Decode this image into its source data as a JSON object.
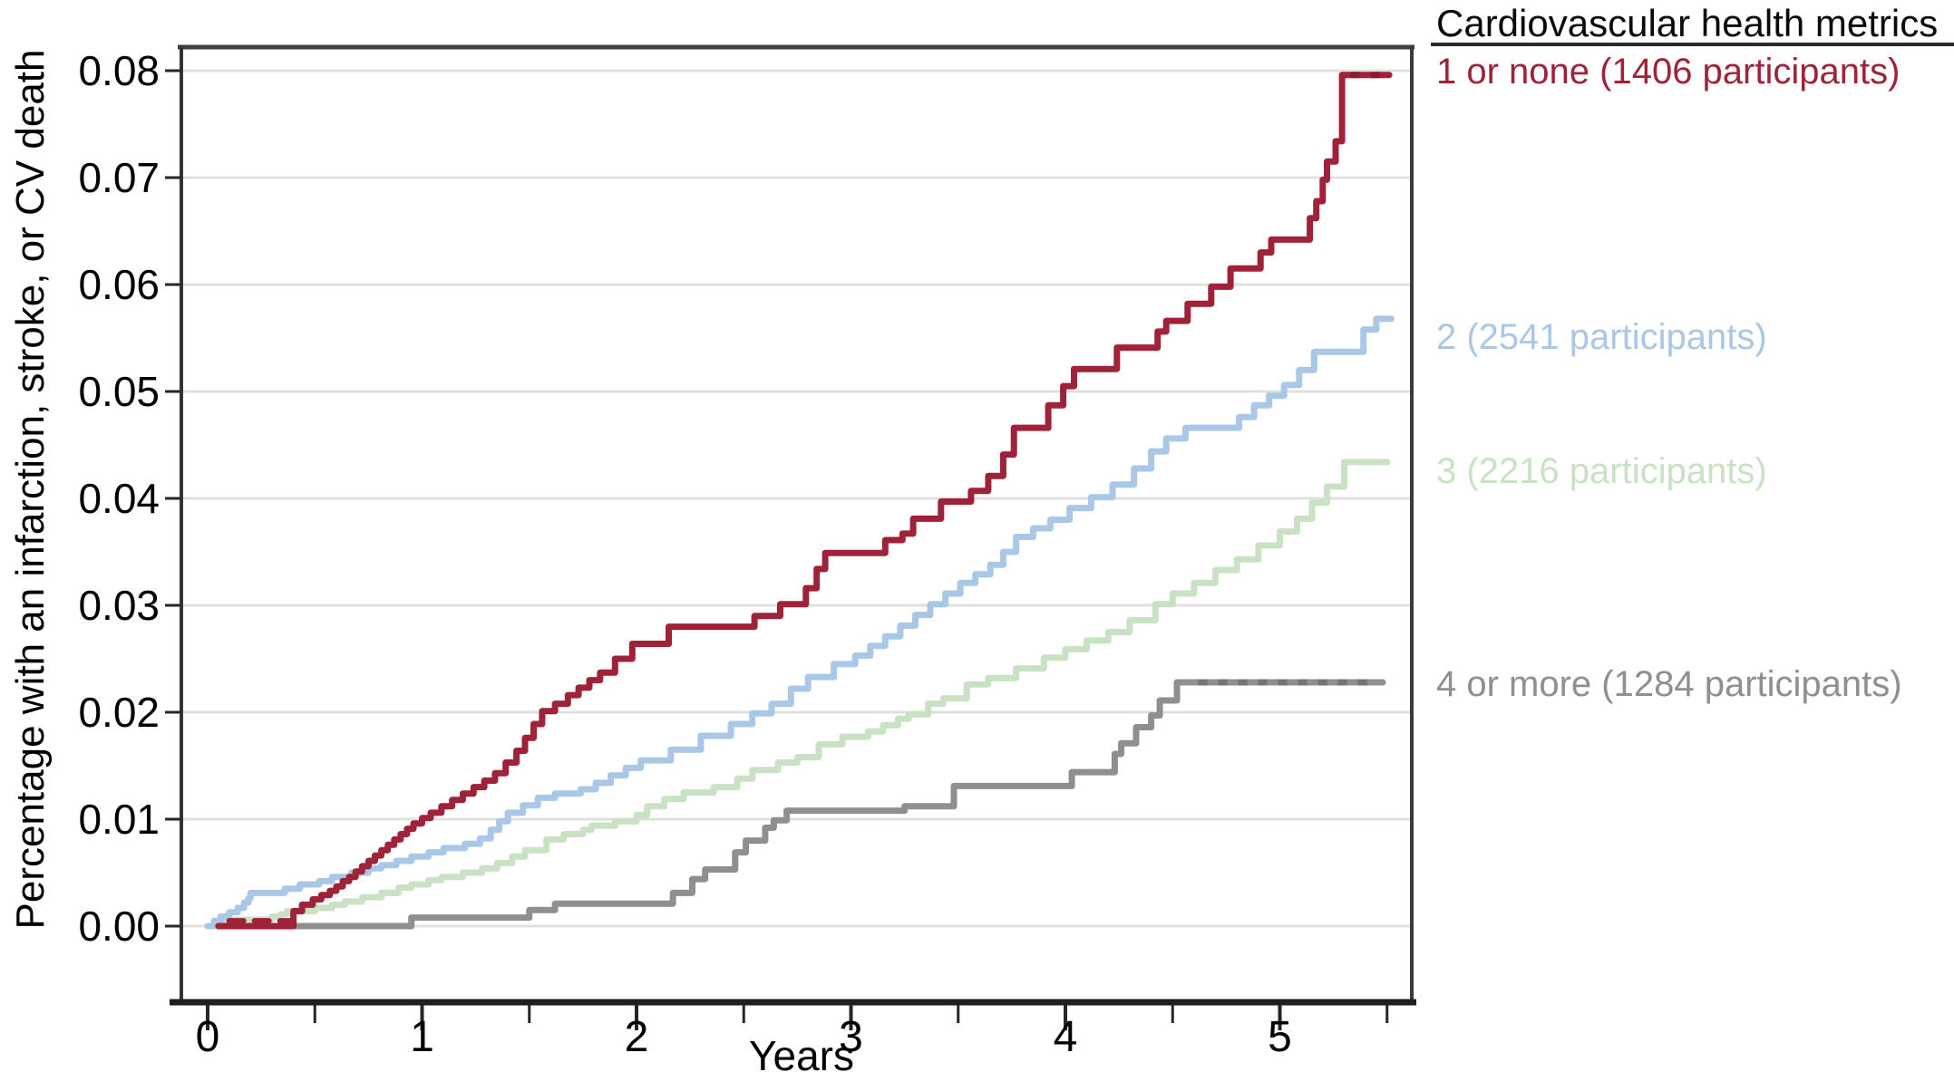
{
  "chart_data": {
    "type": "line",
    "subtype": "kaplan-meier-cumulative-incidence-step-curves",
    "title": "",
    "xlabel": "Years",
    "ylabel": "Percentage with an infarction, stroke, or CV death",
    "xlim": [
      -0.12,
      5.62
    ],
    "ylim": [
      0,
      0.08
    ],
    "x_ticks": [
      0,
      1,
      2,
      3,
      4,
      5
    ],
    "x_minor_ticks": [
      0.5,
      1.5,
      2.5,
      3.5,
      4.5,
      5.5
    ],
    "y_ticks": [
      "0.00",
      "0.01",
      "0.02",
      "0.03",
      "0.04",
      "0.05",
      "0.06",
      "0.07",
      "0.08"
    ],
    "grid": "horizontal",
    "grid_color": "#e0e0e0",
    "axis_color": "#262626",
    "legend": {
      "title": "Cardiovascular health metrics",
      "position": "right"
    },
    "series": [
      {
        "name": "1 or none (1406 participants)",
        "color": "#9e2339",
        "dash_color": "#871b2e",
        "end": 5.51,
        "pre_dash": [
          0.1,
          0.4,
          0.0005
        ],
        "censor_dash": [
          5.33,
          5.49,
          0.0796
        ],
        "points": [
          [
            0.05,
            0.0
          ],
          [
            0.4,
            0.0014
          ],
          [
            0.44,
            0.002
          ],
          [
            0.49,
            0.0025
          ],
          [
            0.53,
            0.0029
          ],
          [
            0.57,
            0.0033
          ],
          [
            0.6,
            0.0037
          ],
          [
            0.63,
            0.0042
          ],
          [
            0.66,
            0.0046
          ],
          [
            0.69,
            0.0051
          ],
          [
            0.72,
            0.0056
          ],
          [
            0.75,
            0.0061
          ],
          [
            0.78,
            0.0066
          ],
          [
            0.81,
            0.0071
          ],
          [
            0.84,
            0.0076
          ],
          [
            0.87,
            0.0081
          ],
          [
            0.9,
            0.0086
          ],
          [
            0.93,
            0.0091
          ],
          [
            0.96,
            0.0096
          ],
          [
            1.0,
            0.0101
          ],
          [
            1.04,
            0.0106
          ],
          [
            1.09,
            0.0112
          ],
          [
            1.14,
            0.0118
          ],
          [
            1.19,
            0.0124
          ],
          [
            1.24,
            0.013
          ],
          [
            1.29,
            0.0136
          ],
          [
            1.34,
            0.0143
          ],
          [
            1.39,
            0.0153
          ],
          [
            1.44,
            0.0164
          ],
          [
            1.48,
            0.0176
          ],
          [
            1.52,
            0.0189
          ],
          [
            1.56,
            0.0201
          ],
          [
            1.62,
            0.0208
          ],
          [
            1.68,
            0.0216
          ],
          [
            1.73,
            0.0223
          ],
          [
            1.78,
            0.023
          ],
          [
            1.83,
            0.0237
          ],
          [
            1.9,
            0.025
          ],
          [
            1.98,
            0.0264
          ],
          [
            2.15,
            0.028
          ],
          [
            2.55,
            0.029
          ],
          [
            2.67,
            0.0301
          ],
          [
            2.79,
            0.0316
          ],
          [
            2.84,
            0.0334
          ],
          [
            2.88,
            0.0349
          ],
          [
            3.16,
            0.0361
          ],
          [
            3.24,
            0.0367
          ],
          [
            3.29,
            0.0381
          ],
          [
            3.42,
            0.0397
          ],
          [
            3.56,
            0.0407
          ],
          [
            3.64,
            0.0421
          ],
          [
            3.71,
            0.0441
          ],
          [
            3.76,
            0.0466
          ],
          [
            3.92,
            0.0487
          ],
          [
            3.99,
            0.0505
          ],
          [
            4.04,
            0.0521
          ],
          [
            4.24,
            0.0541
          ],
          [
            4.43,
            0.0556
          ],
          [
            4.47,
            0.0566
          ],
          [
            4.57,
            0.0582
          ],
          [
            4.68,
            0.0598
          ],
          [
            4.77,
            0.0615
          ],
          [
            4.91,
            0.063
          ],
          [
            4.96,
            0.0642
          ],
          [
            5.14,
            0.0662
          ],
          [
            5.17,
            0.0678
          ],
          [
            5.2,
            0.0698
          ],
          [
            5.22,
            0.0715
          ],
          [
            5.26,
            0.0734
          ],
          [
            5.29,
            0.0796
          ]
        ]
      },
      {
        "name": "2 (2541 participants)",
        "color": "#a9c7e6",
        "end": 5.52,
        "points": [
          [
            0.0,
            0.0
          ],
          [
            0.03,
            0.0005
          ],
          [
            0.06,
            0.0009
          ],
          [
            0.1,
            0.0013
          ],
          [
            0.14,
            0.0017
          ],
          [
            0.17,
            0.0022
          ],
          [
            0.19,
            0.0026
          ],
          [
            0.2,
            0.0031
          ],
          [
            0.36,
            0.0035
          ],
          [
            0.43,
            0.0039
          ],
          [
            0.52,
            0.0042
          ],
          [
            0.58,
            0.0046
          ],
          [
            0.67,
            0.005
          ],
          [
            0.75,
            0.0054
          ],
          [
            0.81,
            0.0057
          ],
          [
            0.88,
            0.0061
          ],
          [
            0.95,
            0.0065
          ],
          [
            1.03,
            0.0069
          ],
          [
            1.1,
            0.0073
          ],
          [
            1.2,
            0.0077
          ],
          [
            1.27,
            0.0082
          ],
          [
            1.32,
            0.009
          ],
          [
            1.36,
            0.0098
          ],
          [
            1.4,
            0.0106
          ],
          [
            1.47,
            0.0113
          ],
          [
            1.54,
            0.012
          ],
          [
            1.62,
            0.0124
          ],
          [
            1.74,
            0.0128
          ],
          [
            1.81,
            0.0134
          ],
          [
            1.88,
            0.0141
          ],
          [
            1.95,
            0.0148
          ],
          [
            2.02,
            0.0155
          ],
          [
            2.16,
            0.0165
          ],
          [
            2.3,
            0.0178
          ],
          [
            2.44,
            0.0189
          ],
          [
            2.54,
            0.0199
          ],
          [
            2.63,
            0.0208
          ],
          [
            2.72,
            0.0222
          ],
          [
            2.8,
            0.0233
          ],
          [
            2.92,
            0.0245
          ],
          [
            3.02,
            0.0253
          ],
          [
            3.09,
            0.0262
          ],
          [
            3.16,
            0.0271
          ],
          [
            3.23,
            0.0281
          ],
          [
            3.3,
            0.0291
          ],
          [
            3.37,
            0.0301
          ],
          [
            3.44,
            0.0311
          ],
          [
            3.51,
            0.0321
          ],
          [
            3.58,
            0.0329
          ],
          [
            3.65,
            0.0338
          ],
          [
            3.71,
            0.035
          ],
          [
            3.77,
            0.0364
          ],
          [
            3.85,
            0.0372
          ],
          [
            3.93,
            0.038
          ],
          [
            4.02,
            0.0391
          ],
          [
            4.12,
            0.0401
          ],
          [
            4.22,
            0.0413
          ],
          [
            4.32,
            0.0428
          ],
          [
            4.4,
            0.0444
          ],
          [
            4.47,
            0.0456
          ],
          [
            4.56,
            0.0466
          ],
          [
            4.81,
            0.0476
          ],
          [
            4.88,
            0.0487
          ],
          [
            4.95,
            0.0496
          ],
          [
            5.02,
            0.0506
          ],
          [
            5.09,
            0.052
          ],
          [
            5.16,
            0.0537
          ],
          [
            5.39,
            0.0558
          ],
          [
            5.45,
            0.0568
          ]
        ]
      },
      {
        "name": "3 (2216 participants)",
        "color": "#c8e2c3",
        "end": 5.5,
        "points": [
          [
            0.05,
            0.0003
          ],
          [
            0.1,
            0.0006
          ],
          [
            0.3,
            0.0009
          ],
          [
            0.34,
            0.0011
          ],
          [
            0.37,
            0.0014
          ],
          [
            0.5,
            0.0017
          ],
          [
            0.58,
            0.002
          ],
          [
            0.64,
            0.0023
          ],
          [
            0.72,
            0.0027
          ],
          [
            0.81,
            0.0031
          ],
          [
            0.89,
            0.0036
          ],
          [
            0.95,
            0.0039
          ],
          [
            1.03,
            0.0043
          ],
          [
            1.09,
            0.0046
          ],
          [
            1.19,
            0.005
          ],
          [
            1.28,
            0.0054
          ],
          [
            1.35,
            0.0059
          ],
          [
            1.42,
            0.0065
          ],
          [
            1.48,
            0.0071
          ],
          [
            1.58,
            0.0081
          ],
          [
            1.66,
            0.0086
          ],
          [
            1.75,
            0.009
          ],
          [
            1.79,
            0.0094
          ],
          [
            1.9,
            0.0098
          ],
          [
            2.0,
            0.0104
          ],
          [
            2.05,
            0.0112
          ],
          [
            2.13,
            0.0119
          ],
          [
            2.22,
            0.0125
          ],
          [
            2.36,
            0.013
          ],
          [
            2.47,
            0.0138
          ],
          [
            2.54,
            0.0146
          ],
          [
            2.66,
            0.0153
          ],
          [
            2.75,
            0.0158
          ],
          [
            2.85,
            0.017
          ],
          [
            2.96,
            0.0177
          ],
          [
            3.08,
            0.0182
          ],
          [
            3.15,
            0.0188
          ],
          [
            3.22,
            0.0194
          ],
          [
            3.27,
            0.0198
          ],
          [
            3.36,
            0.0208
          ],
          [
            3.43,
            0.0213
          ],
          [
            3.54,
            0.0226
          ],
          [
            3.64,
            0.0232
          ],
          [
            3.77,
            0.0241
          ],
          [
            3.9,
            0.0251
          ],
          [
            4.0,
            0.0259
          ],
          [
            4.1,
            0.0267
          ],
          [
            4.2,
            0.0275
          ],
          [
            4.3,
            0.0286
          ],
          [
            4.42,
            0.0301
          ],
          [
            4.5,
            0.0311
          ],
          [
            4.6,
            0.0321
          ],
          [
            4.7,
            0.0333
          ],
          [
            4.8,
            0.0343
          ],
          [
            4.9,
            0.0356
          ],
          [
            5.0,
            0.0369
          ],
          [
            5.08,
            0.0381
          ],
          [
            5.15,
            0.0396
          ],
          [
            5.22,
            0.0411
          ],
          [
            5.3,
            0.0434
          ]
        ]
      },
      {
        "name": "4 or more (1284 participants)",
        "color": "#8f8f8f",
        "dash_color": "#747474",
        "end": 5.48,
        "censor_dash": [
          4.62,
          5.44,
          0.0228
        ],
        "points": [
          [
            0.08,
            0.0
          ],
          [
            0.95,
            0.0008
          ],
          [
            1.5,
            0.0015
          ],
          [
            1.62,
            0.0021
          ],
          [
            2.17,
            0.0031
          ],
          [
            2.26,
            0.0044
          ],
          [
            2.32,
            0.0053
          ],
          [
            2.46,
            0.0069
          ],
          [
            2.51,
            0.008
          ],
          [
            2.6,
            0.0092
          ],
          [
            2.64,
            0.0099
          ],
          [
            2.7,
            0.0108
          ],
          [
            3.25,
            0.0112
          ],
          [
            3.48,
            0.0131
          ],
          [
            4.03,
            0.0144
          ],
          [
            4.23,
            0.0161
          ],
          [
            4.26,
            0.0171
          ],
          [
            4.33,
            0.0186
          ],
          [
            4.4,
            0.0197
          ],
          [
            4.44,
            0.0211
          ],
          [
            4.52,
            0.0228
          ]
        ]
      }
    ]
  }
}
